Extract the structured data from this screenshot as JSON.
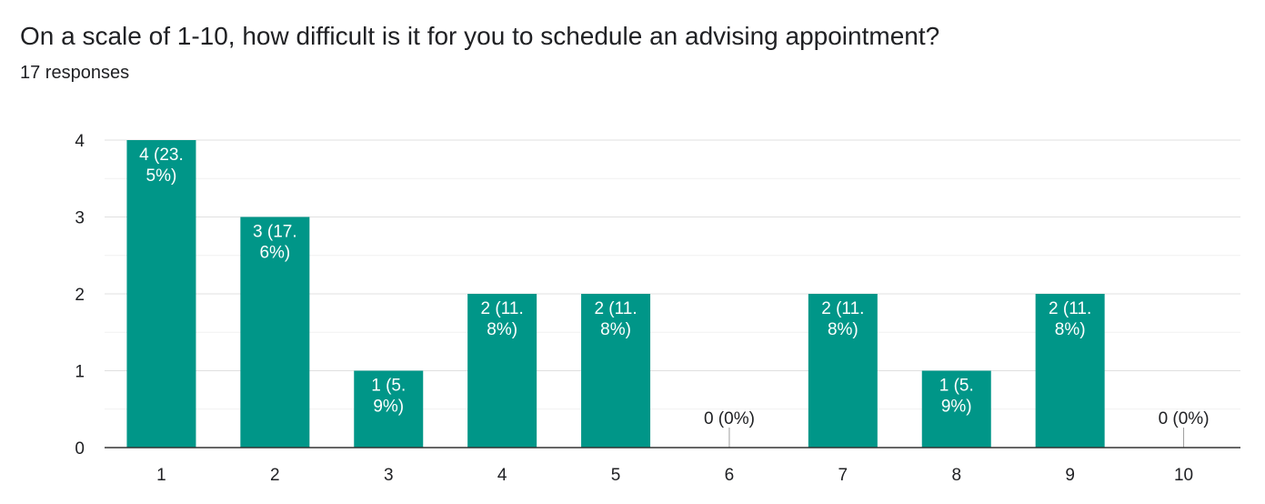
{
  "header": {
    "title": "On a scale of 1-10, how difficult is it for you to schedule an advising appointment?",
    "responses": "17 responses"
  },
  "chart_data": {
    "type": "bar",
    "categories": [
      "1",
      "2",
      "3",
      "4",
      "5",
      "6",
      "7",
      "8",
      "9",
      "10"
    ],
    "values": [
      4,
      3,
      1,
      2,
      2,
      0,
      2,
      1,
      2,
      0
    ],
    "data_labels": [
      [
        "4 (23.",
        "5%)"
      ],
      [
        "3 (17.",
        "6%)"
      ],
      [
        "1 (5.",
        "9%)"
      ],
      [
        "2 (11.",
        "8%)"
      ],
      [
        "2 (11.",
        "8%)"
      ],
      [
        "0 (0%)"
      ],
      [
        "2 (11.",
        "8%)"
      ],
      [
        "1 (5.",
        "9%)"
      ],
      [
        "2 (11.",
        "8%)"
      ],
      [
        "0 (0%)"
      ]
    ],
    "ylim": [
      0,
      4
    ],
    "yticks": [
      "0",
      "1",
      "2",
      "3",
      "4"
    ],
    "grid": true,
    "bar_color": "#009688"
  }
}
